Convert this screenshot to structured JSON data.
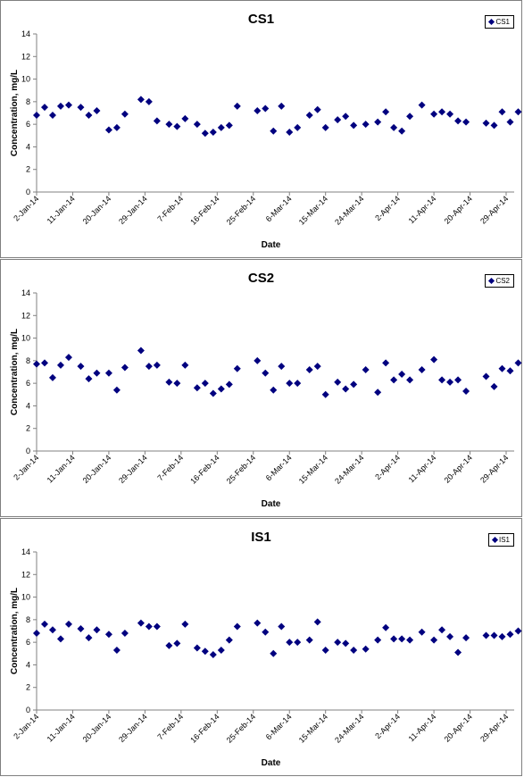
{
  "colors": {
    "marker": "#00007f",
    "axis": "#808080",
    "frame": "#7f7f7f"
  },
  "chart_data": [
    {
      "type": "scatter",
      "title": "CS1",
      "xlabel": "Date",
      "ylabel": "Concentration, mg/L",
      "legend": {
        "placement": "top-right",
        "entries": [
          "CS1"
        ]
      },
      "grid": false,
      "ylim": [
        0,
        14
      ],
      "yticks": [
        0,
        2,
        4,
        6,
        8,
        10,
        12,
        14
      ],
      "xlim": [
        "2014-01-02",
        "2014-05-01"
      ],
      "xtick_labels": [
        "2-Jan-14",
        "11-Jan-14",
        "20-Jan-14",
        "29-Jan-14",
        "7-Feb-14",
        "16-Feb-14",
        "25-Feb-14",
        "6-Mar-14",
        "15-Mar-14",
        "24-Mar-14",
        "2-Apr-14",
        "11-Apr-14",
        "20-Apr-14",
        "29-Apr-14"
      ],
      "series": [
        {
          "name": "CS1",
          "x": [
            "2014-01-02",
            "2014-01-04",
            "2014-01-06",
            "2014-01-08",
            "2014-01-10",
            "2014-01-13",
            "2014-01-15",
            "2014-01-17",
            "2014-01-20",
            "2014-01-22",
            "2014-01-24",
            "2014-01-28",
            "2014-01-30",
            "2014-02-01",
            "2014-02-04",
            "2014-02-06",
            "2014-02-08",
            "2014-02-11",
            "2014-02-13",
            "2014-02-15",
            "2014-02-17",
            "2014-02-19",
            "2014-02-21",
            "2014-02-26",
            "2014-02-28",
            "2014-03-02",
            "2014-03-04",
            "2014-03-06",
            "2014-03-08",
            "2014-03-11",
            "2014-03-13",
            "2014-03-15",
            "2014-03-18",
            "2014-03-20",
            "2014-03-22",
            "2014-03-25",
            "2014-03-28",
            "2014-03-30",
            "2014-04-01",
            "2014-04-03",
            "2014-04-05",
            "2014-04-08",
            "2014-04-11",
            "2014-04-13",
            "2014-04-15",
            "2014-04-17",
            "2014-04-19",
            "2014-04-24",
            "2014-04-26",
            "2014-04-28",
            "2014-04-30",
            "2014-05-02"
          ],
          "y": [
            6.8,
            7.5,
            6.8,
            7.6,
            7.7,
            7.5,
            6.8,
            7.2,
            5.5,
            5.7,
            6.9,
            8.2,
            8.0,
            6.3,
            6.0,
            5.8,
            6.5,
            6.0,
            5.2,
            5.3,
            5.7,
            5.9,
            7.6,
            7.2,
            7.4,
            5.4,
            7.6,
            5.3,
            5.7,
            6.8,
            7.3,
            5.7,
            6.4,
            6.7,
            5.9,
            6.0,
            6.2,
            7.1,
            5.7,
            5.4,
            6.7,
            7.7,
            6.9,
            7.1,
            6.9,
            6.3,
            6.2,
            6.1,
            5.9,
            7.1,
            6.2,
            7.1
          ]
        }
      ]
    },
    {
      "type": "scatter",
      "title": "CS2",
      "xlabel": "Date",
      "ylabel": "Concentration, mg/L",
      "legend": {
        "placement": "top-right",
        "entries": [
          "CS2"
        ]
      },
      "grid": false,
      "ylim": [
        0,
        14
      ],
      "yticks": [
        0,
        2,
        4,
        6,
        8,
        10,
        12,
        14
      ],
      "xlim": [
        "2014-01-02",
        "2014-05-01"
      ],
      "xtick_labels": [
        "2-Jan-14",
        "11-Jan-14",
        "20-Jan-14",
        "29-Jan-14",
        "7-Feb-14",
        "16-Feb-14",
        "25-Feb-14",
        "6-Mar-14",
        "15-Mar-14",
        "24-Mar-14",
        "2-Apr-14",
        "11-Apr-14",
        "20-Apr-14",
        "29-Apr-14"
      ],
      "series": [
        {
          "name": "CS2",
          "x": [
            "2014-01-02",
            "2014-01-04",
            "2014-01-06",
            "2014-01-08",
            "2014-01-10",
            "2014-01-13",
            "2014-01-15",
            "2014-01-17",
            "2014-01-20",
            "2014-01-22",
            "2014-01-24",
            "2014-01-28",
            "2014-01-30",
            "2014-02-01",
            "2014-02-04",
            "2014-02-06",
            "2014-02-08",
            "2014-02-11",
            "2014-02-13",
            "2014-02-15",
            "2014-02-17",
            "2014-02-19",
            "2014-02-21",
            "2014-02-26",
            "2014-02-28",
            "2014-03-02",
            "2014-03-04",
            "2014-03-06",
            "2014-03-08",
            "2014-03-11",
            "2014-03-13",
            "2014-03-15",
            "2014-03-18",
            "2014-03-20",
            "2014-03-22",
            "2014-03-25",
            "2014-03-28",
            "2014-03-30",
            "2014-04-01",
            "2014-04-03",
            "2014-04-05",
            "2014-04-08",
            "2014-04-11",
            "2014-04-13",
            "2014-04-15",
            "2014-04-17",
            "2014-04-19",
            "2014-04-24",
            "2014-04-26",
            "2014-04-28",
            "2014-04-30",
            "2014-05-02"
          ],
          "y": [
            7.7,
            7.8,
            6.5,
            7.6,
            8.3,
            7.5,
            6.4,
            6.9,
            6.9,
            5.4,
            7.4,
            8.9,
            7.5,
            7.6,
            6.1,
            6.0,
            7.6,
            5.6,
            6.0,
            5.1,
            5.5,
            5.9,
            7.3,
            8.0,
            6.9,
            5.4,
            7.5,
            6.0,
            6.0,
            7.2,
            7.5,
            5.0,
            6.1,
            5.5,
            5.9,
            7.2,
            5.2,
            7.8,
            6.3,
            6.8,
            6.3,
            7.2,
            8.1,
            6.3,
            6.1,
            6.3,
            5.3,
            6.6,
            5.7,
            7.3,
            7.1,
            7.8
          ]
        }
      ]
    },
    {
      "type": "scatter",
      "title": "IS1",
      "xlabel": "Date",
      "ylabel": "Concentration, mg/L",
      "legend": {
        "placement": "top-right",
        "entries": [
          "IS1"
        ]
      },
      "grid": false,
      "ylim": [
        0,
        14
      ],
      "yticks": [
        0,
        2,
        4,
        6,
        8,
        10,
        12,
        14
      ],
      "xlim": [
        "2014-01-02",
        "2014-05-01"
      ],
      "xtick_labels": [
        "2-Jan-14",
        "11-Jan-14",
        "20-Jan-14",
        "29-Jan-14",
        "7-Feb-14",
        "16-Feb-14",
        "25-Feb-14",
        "6-Mar-14",
        "15-Mar-14",
        "24-Mar-14",
        "2-Apr-14",
        "11-Apr-14",
        "20-Apr-14",
        "29-Apr-14"
      ],
      "series": [
        {
          "name": "IS1",
          "x": [
            "2014-01-02",
            "2014-01-04",
            "2014-01-06",
            "2014-01-08",
            "2014-01-10",
            "2014-01-13",
            "2014-01-15",
            "2014-01-17",
            "2014-01-20",
            "2014-01-22",
            "2014-01-24",
            "2014-01-28",
            "2014-01-30",
            "2014-02-01",
            "2014-02-04",
            "2014-02-06",
            "2014-02-08",
            "2014-02-11",
            "2014-02-13",
            "2014-02-15",
            "2014-02-17",
            "2014-02-19",
            "2014-02-21",
            "2014-02-26",
            "2014-02-28",
            "2014-03-02",
            "2014-03-04",
            "2014-03-06",
            "2014-03-08",
            "2014-03-11",
            "2014-03-13",
            "2014-03-15",
            "2014-03-18",
            "2014-03-20",
            "2014-03-22",
            "2014-03-25",
            "2014-03-28",
            "2014-03-30",
            "2014-04-01",
            "2014-04-03",
            "2014-04-05",
            "2014-04-08",
            "2014-04-11",
            "2014-04-13",
            "2014-04-15",
            "2014-04-17",
            "2014-04-19",
            "2014-04-24",
            "2014-04-26",
            "2014-04-28",
            "2014-04-30",
            "2014-05-02"
          ],
          "y": [
            6.8,
            7.6,
            7.1,
            6.3,
            7.6,
            7.2,
            6.4,
            7.1,
            6.7,
            5.3,
            6.8,
            7.7,
            7.4,
            7.4,
            5.7,
            5.9,
            7.6,
            5.5,
            5.2,
            4.9,
            5.3,
            6.2,
            7.4,
            7.7,
            6.9,
            5.0,
            7.4,
            6.0,
            6.0,
            6.2,
            7.8,
            5.3,
            6.0,
            5.9,
            5.3,
            5.4,
            6.2,
            7.3,
            6.3,
            6.3,
            6.2,
            6.9,
            6.2,
            7.1,
            6.5,
            5.1,
            6.4,
            6.6,
            6.6,
            6.5,
            6.7,
            7.0
          ]
        }
      ]
    }
  ]
}
